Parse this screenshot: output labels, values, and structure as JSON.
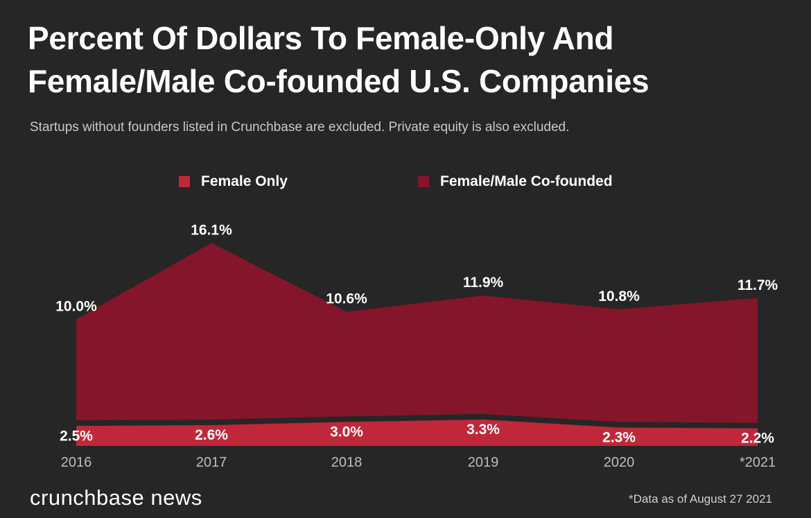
{
  "header": {
    "title_line1": "Percent Of Dollars To Female-Only And",
    "title_line2": "Female/Male Co-founded U.S. Companies",
    "subtitle": "Startups without founders listed in Crunchbase are excluded. Private equity is also excluded."
  },
  "footer": {
    "brand": "crunchbase news",
    "footnote": "*Data as of August 27 2021"
  },
  "colors": {
    "background": "#262626",
    "female_only": "#c0283a",
    "co_founded": "#85152b"
  },
  "chart_data": {
    "type": "area",
    "title": "Percent Of Dollars To Female-Only And Female/Male Co-founded U.S. Companies",
    "categories": [
      "2016",
      "2017",
      "2018",
      "2019",
      "2020",
      "*2021"
    ],
    "series": [
      {
        "name": "Female Only",
        "values": [
          2.5,
          2.6,
          3.0,
          3.3,
          2.3,
          2.2
        ],
        "labels": [
          "2.5%",
          "2.6%",
          "3.0%",
          "3.3%",
          "2.3%",
          "2.2%"
        ],
        "color": "#c0283a"
      },
      {
        "name": "Female/Male Co-founded",
        "values": [
          10.0,
          16.1,
          10.6,
          11.9,
          10.8,
          11.7
        ],
        "labels": [
          "10.0%",
          "16.1%",
          "10.6%",
          "11.9%",
          "10.8%",
          "11.7%"
        ],
        "color": "#85152b"
      }
    ],
    "legend": "top-center",
    "grid": false
  }
}
